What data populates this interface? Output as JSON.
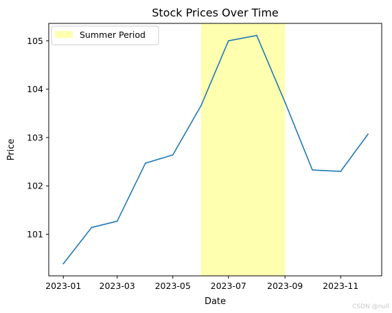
{
  "chart_data": {
    "type": "line",
    "title": "Stock Prices Over Time",
    "xlabel": "Date",
    "ylabel": "Price",
    "x": [
      "2023-01-01",
      "2023-02-01",
      "2023-03-01",
      "2023-04-01",
      "2023-05-01",
      "2023-06-01",
      "2023-07-01",
      "2023-08-01",
      "2023-09-01",
      "2023-10-01",
      "2023-11-01",
      "2023-12-01"
    ],
    "series": [
      {
        "values": [
          100.39,
          101.14,
          101.27,
          102.47,
          102.64,
          103.66,
          105.0,
          105.11,
          103.73,
          102.33,
          102.3,
          103.07
        ],
        "color": "#1f77b4"
      }
    ],
    "xlim": [
      "2022-12-16",
      "2023-12-16"
    ],
    "ylim": [
      100.14,
      105.36
    ],
    "xticks": [
      "2023-01-01",
      "2023-03-01",
      "2023-05-01",
      "2023-07-01",
      "2023-09-01",
      "2023-11-01"
    ],
    "xtick_labels": [
      "2023-01",
      "2023-03",
      "2023-05",
      "2023-07",
      "2023-09",
      "2023-11"
    ],
    "yticks": [
      101,
      102,
      103,
      104,
      105
    ],
    "span": {
      "start": "2023-06-01",
      "end": "2023-09-01",
      "label": "Summer Period",
      "color": "#ffffb0"
    },
    "legend": {
      "position": "top-left",
      "entries": [
        "Summer Period"
      ]
    },
    "grid": false
  },
  "watermark": "CSDN @null"
}
